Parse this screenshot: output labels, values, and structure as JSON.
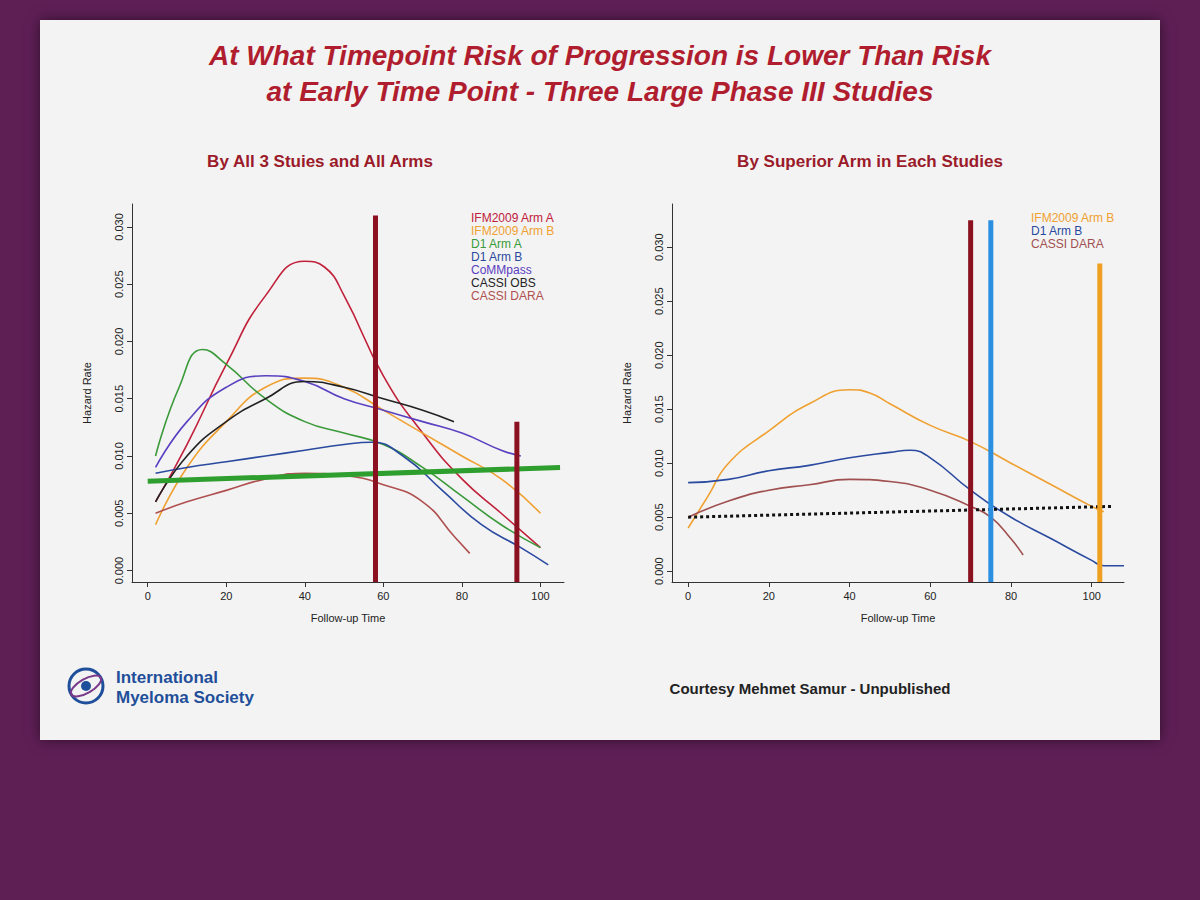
{
  "slide": {
    "title": [
      "At What Timepoint Risk of Progression is Lower Than Risk",
      "at Early Time Point - Three Large Phase III Studies"
    ],
    "credit": "Courtesy Mehmet Samur - Unpublished",
    "logo": [
      "International",
      "Myeloma Society"
    ]
  },
  "chart_data": [
    {
      "type": "line",
      "title": "By All 3 Stuies and All Arms",
      "x_label": "Follow-up Time",
      "y_label": "Hazard Rate",
      "xlim": [
        -4,
        106
      ],
      "ylim": [
        -0.001,
        0.032
      ],
      "xticks": [
        0,
        20,
        40,
        60,
        80,
        100
      ],
      "yticks": [
        {
          "value": 0,
          "label": "0.000"
        },
        {
          "value": 0.005,
          "label": "0.005"
        },
        {
          "value": 0.01,
          "label": "0.010"
        },
        {
          "value": 0.015,
          "label": "0.015"
        },
        {
          "value": 0.02,
          "label": "0.020"
        },
        {
          "value": 0.025,
          "label": "0.025"
        },
        {
          "value": 0.03,
          "label": "0.030"
        }
      ],
      "grid": false,
      "legend": "upper right",
      "series": [
        {
          "name": "IFM2009 Arm A",
          "color": "#c0203a",
          "x": [
            2,
            10,
            20,
            30,
            40,
            45,
            50,
            60,
            70,
            80,
            90,
            100
          ],
          "values": [
            0.006,
            0.011,
            0.018,
            0.024,
            0.027,
            0.0265,
            0.024,
            0.017,
            0.012,
            0.008,
            0.005,
            0.002
          ]
        },
        {
          "name": "IFM2009 Arm B",
          "color": "#f0a030",
          "x": [
            2,
            10,
            20,
            30,
            40,
            50,
            60,
            70,
            80,
            90,
            100
          ],
          "values": [
            0.004,
            0.009,
            0.013,
            0.016,
            0.0168,
            0.016,
            0.014,
            0.012,
            0.01,
            0.008,
            0.005
          ]
        },
        {
          "name": "D1 Arm A",
          "color": "#3a9a3a",
          "x": [
            2,
            8,
            14,
            20,
            30,
            40,
            50,
            60,
            70,
            80,
            90,
            100
          ],
          "values": [
            0.01,
            0.016,
            0.0193,
            0.018,
            0.015,
            0.013,
            0.012,
            0.011,
            0.009,
            0.0065,
            0.004,
            0.002
          ]
        },
        {
          "name": "D1 Arm B",
          "color": "#2a4aa0",
          "x": [
            2,
            10,
            20,
            30,
            40,
            50,
            57,
            65,
            75,
            85,
            95,
            102
          ],
          "values": [
            0.0085,
            0.009,
            0.0095,
            0.01,
            0.0105,
            0.011,
            0.0112,
            0.01,
            0.007,
            0.004,
            0.002,
            0.0005
          ]
        },
        {
          "name": "CoMMpass",
          "color": "#5a40c0",
          "x": [
            2,
            10,
            20,
            30,
            40,
            50,
            60,
            70,
            80,
            90,
            95
          ],
          "values": [
            0.009,
            0.013,
            0.016,
            0.017,
            0.0165,
            0.015,
            0.014,
            0.013,
            0.012,
            0.0105,
            0.01
          ]
        },
        {
          "name": "CASSI OBS",
          "color": "#222222",
          "x": [
            2,
            10,
            20,
            30,
            40,
            50,
            60,
            70,
            78
          ],
          "values": [
            0.006,
            0.01,
            0.013,
            0.015,
            0.0165,
            0.016,
            0.015,
            0.014,
            0.013
          ]
        },
        {
          "name": "CASSI DARA",
          "color": "#b05050",
          "x": [
            2,
            10,
            20,
            30,
            40,
            50,
            60,
            70,
            78,
            82
          ],
          "values": [
            0.005,
            0.006,
            0.007,
            0.008,
            0.0085,
            0.0083,
            0.0075,
            0.006,
            0.003,
            0.0015
          ]
        }
      ],
      "vlines": [
        {
          "x": 58,
          "top": 0.031,
          "color": "#8b1020"
        },
        {
          "x": 94,
          "top": 0.013,
          "color": "#8b1020"
        }
      ],
      "reference_lines": [
        {
          "x": [
            0,
            105
          ],
          "y": [
            0.0078,
            0.009
          ],
          "color": "#2e9e2e",
          "line_style": "solid"
        }
      ]
    },
    {
      "type": "line",
      "title": "By Superior Arm in Each Studies",
      "x_label": "Follow-up Time",
      "y_label": "Hazard Rate",
      "xlim": [
        -4,
        108
      ],
      "ylim": [
        -0.001,
        0.034
      ],
      "xticks": [
        0,
        20,
        40,
        60,
        80,
        100
      ],
      "yticks": [
        {
          "value": 0,
          "label": "0.000"
        },
        {
          "value": 0.005,
          "label": "0.005"
        },
        {
          "value": 0.01,
          "label": "0.010"
        },
        {
          "value": 0.015,
          "label": "0.015"
        },
        {
          "value": 0.02,
          "label": "0.020"
        },
        {
          "value": 0.025,
          "label": "0.025"
        },
        {
          "value": 0.03,
          "label": "0.030"
        }
      ],
      "grid": false,
      "legend": "upper right",
      "series": [
        {
          "name": "IFM2009 Arm B",
          "color": "#f0a030",
          "x": [
            0,
            5,
            10,
            20,
            30,
            40,
            45,
            50,
            60,
            70,
            80,
            90,
            100,
            103
          ],
          "values": [
            0.004,
            0.007,
            0.01,
            0.013,
            0.0155,
            0.0168,
            0.0165,
            0.0155,
            0.0135,
            0.012,
            0.01,
            0.008,
            0.006,
            0.0055
          ]
        },
        {
          "name": "D1 Arm B",
          "color": "#2a4aa0",
          "x": [
            0,
            10,
            20,
            30,
            40,
            50,
            55,
            60,
            70,
            80,
            90,
            100,
            103,
            108
          ],
          "values": [
            0.0082,
            0.0085,
            0.0093,
            0.0098,
            0.0105,
            0.011,
            0.0112,
            0.0105,
            0.0075,
            0.005,
            0.003,
            0.001,
            0.0005,
            0.0005
          ]
        },
        {
          "name": "CASSI DARA",
          "color": "#a05050",
          "x": [
            0,
            10,
            20,
            30,
            40,
            50,
            60,
            70,
            75,
            80,
            83
          ],
          "values": [
            0.005,
            0.0065,
            0.0075,
            0.008,
            0.0085,
            0.0083,
            0.0075,
            0.006,
            0.005,
            0.003,
            0.0015
          ]
        }
      ],
      "vlines": [
        {
          "x": 70,
          "top": 0.0325,
          "color": "#8b1020"
        },
        {
          "x": 75,
          "top": 0.0325,
          "color": "#2a8fe0"
        },
        {
          "x": 102,
          "top": 0.0285,
          "color": "#f0a020"
        }
      ],
      "reference_lines": [
        {
          "x": [
            0,
            105
          ],
          "y": [
            0.005,
            0.006
          ],
          "color": "#111111",
          "line_style": "dotted"
        }
      ]
    }
  ]
}
